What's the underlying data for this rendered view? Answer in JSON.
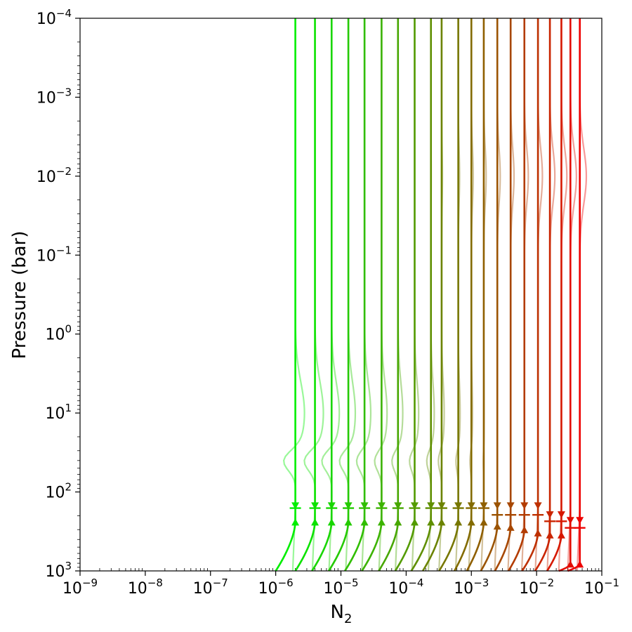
{
  "chart_data": {
    "type": "line",
    "title": "",
    "xlabel": "N",
    "xlabel_sub": "2",
    "ylabel": "Pressure (bar)",
    "xscale": "log",
    "yscale": "log",
    "xlim": [
      1e-09,
      0.1
    ],
    "ylim": [
      1000,
      0.0001
    ],
    "y_inverted": true,
    "grid": false,
    "x_ticks": [
      {
        "base": "10",
        "exp": "−9",
        "value": 1e-09
      },
      {
        "base": "10",
        "exp": "−8",
        "value": 1e-08
      },
      {
        "base": "10",
        "exp": "−7",
        "value": 1e-07
      },
      {
        "base": "10",
        "exp": "−6",
        "value": 1e-06
      },
      {
        "base": "10",
        "exp": "−5",
        "value": 1e-05
      },
      {
        "base": "10",
        "exp": "−4",
        "value": 0.0001
      },
      {
        "base": "10",
        "exp": "−3",
        "value": 0.001
      },
      {
        "base": "10",
        "exp": "−2",
        "value": 0.01
      },
      {
        "base": "10",
        "exp": "−1",
        "value": 0.1
      }
    ],
    "y_ticks": [
      {
        "base": "10",
        "exp": "−4",
        "value": 0.0001
      },
      {
        "base": "10",
        "exp": "−3",
        "value": 0.001
      },
      {
        "base": "10",
        "exp": "−2",
        "value": 0.01
      },
      {
        "base": "10",
        "exp": "−1",
        "value": 0.1
      },
      {
        "base": "10",
        "exp": "0",
        "value": 1
      },
      {
        "base": "10",
        "exp": "1",
        "value": 10
      },
      {
        "base": "10",
        "exp": "2",
        "value": 100
      },
      {
        "base": "10",
        "exp": "3",
        "value": 1000
      }
    ],
    "colors": {
      "start": "#00ee00",
      "end": "#ee0000"
    },
    "series": [
      {
        "x_upper": 2e-06,
        "x_deep": 1e-06,
        "p_marker_down": 150,
        "p_marker_up": 240,
        "p_bar": 160
      },
      {
        "x_upper": 4e-06,
        "x_deep": 2e-06,
        "p_marker_down": 150,
        "p_marker_up": 240,
        "p_bar": 160
      },
      {
        "x_upper": 7.2e-06,
        "x_deep": 3.6e-06,
        "p_marker_down": 150,
        "p_marker_up": 240,
        "p_bar": 160
      },
      {
        "x_upper": 1.3e-05,
        "x_deep": 6.5e-06,
        "p_marker_down": 150,
        "p_marker_up": 240,
        "p_bar": 160
      },
      {
        "x_upper": 2.3e-05,
        "x_deep": 1.15e-05,
        "p_marker_down": 150,
        "p_marker_up": 240,
        "p_bar": 160
      },
      {
        "x_upper": 4.2e-05,
        "x_deep": 2.1e-05,
        "p_marker_down": 150,
        "p_marker_up": 240,
        "p_bar": 160
      },
      {
        "x_upper": 7.5e-05,
        "x_deep": 3.8e-05,
        "p_marker_down": 150,
        "p_marker_up": 240,
        "p_bar": 160
      },
      {
        "x_upper": 0.000135,
        "x_deep": 6.8e-05,
        "p_marker_down": 150,
        "p_marker_up": 240,
        "p_bar": 160
      },
      {
        "x_upper": 0.00024,
        "x_deep": 0.00012,
        "p_marker_down": 150,
        "p_marker_up": 240,
        "p_bar": 160
      },
      {
        "x_upper": 0.00035,
        "x_deep": 0.00018,
        "p_marker_down": 150,
        "p_marker_up": 240,
        "p_bar": 160
      },
      {
        "x_upper": 0.00063,
        "x_deep": 0.00032,
        "p_marker_down": 150,
        "p_marker_up": 240,
        "p_bar": 160
      },
      {
        "x_upper": 0.001,
        "x_deep": 0.00055,
        "p_marker_down": 150,
        "p_marker_up": 240,
        "p_bar": 160
      },
      {
        "x_upper": 0.00155,
        "x_deep": 0.00085,
        "p_marker_down": 150,
        "p_marker_up": 240,
        "p_bar": 160
      },
      {
        "x_upper": 0.0025,
        "x_deep": 0.0014,
        "p_marker_down": 150,
        "p_marker_up": 270,
        "p_bar": 195
      },
      {
        "x_upper": 0.004,
        "x_deep": 0.0023,
        "p_marker_down": 150,
        "p_marker_up": 280,
        "p_bar": 195
      },
      {
        "x_upper": 0.0065,
        "x_deep": 0.0037,
        "p_marker_down": 150,
        "p_marker_up": 300,
        "p_bar": 195
      },
      {
        "x_upper": 0.0105,
        "x_deep": 0.006,
        "p_marker_down": 150,
        "p_marker_up": 330,
        "p_bar": 195
      },
      {
        "x_upper": 0.016,
        "x_deep": 0.0095,
        "p_marker_down": 195,
        "p_marker_up": 350,
        "p_bar": 235
      },
      {
        "x_upper": 0.024,
        "x_deep": 0.0145,
        "p_marker_down": 195,
        "p_marker_up": 350,
        "p_bar": 235
      },
      {
        "x_upper": 0.033,
        "x_deep": 0.022,
        "p_marker_down": 230,
        "p_marker_up": 820,
        "p_bar": 285
      },
      {
        "x_upper": 0.046,
        "x_deep": 0.03,
        "p_marker_down": 230,
        "p_marker_up": 820,
        "p_bar": 285
      }
    ]
  }
}
